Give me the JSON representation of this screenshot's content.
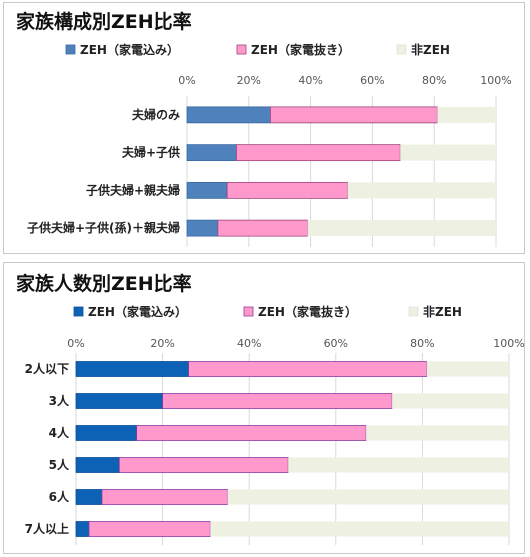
{
  "colors": {
    "zeh_home": "#4f81bd",
    "zeh_nohome": "#ff99cc",
    "non_zeh": "#eef1e2",
    "grid": "#d9d9d9",
    "chart2_zeh_home": "#0e62b5",
    "chart2_zeh_nohome_stroke": "#8e3aa3"
  },
  "chart_data": [
    {
      "type": "bar",
      "orientation": "horizontal",
      "stacked": true,
      "title": "家族構成別ZEH比率",
      "categories": [
        "夫婦のみ",
        "夫婦+子供",
        "子供夫婦+親夫婦",
        "子供夫婦+子供(孫)＋親夫婦"
      ],
      "series": [
        {
          "name": "ZEH（家電込み）",
          "values": [
            27,
            16,
            13,
            10
          ]
        },
        {
          "name": "ZEH（家電抜き）",
          "values": [
            54,
            53,
            39,
            29
          ]
        },
        {
          "name": "非ZEH",
          "values": [
            19,
            31,
            48,
            61
          ]
        }
      ],
      "xlim": [
        0,
        100
      ],
      "xticks": [
        "0%",
        "20%",
        "40%",
        "60%",
        "80%",
        "100%"
      ],
      "grid": true,
      "legend": "top"
    },
    {
      "type": "bar",
      "orientation": "horizontal",
      "stacked": true,
      "title": "家族人数別ZEH比率",
      "categories": [
        "2人以下",
        "3人",
        "4人",
        "5人",
        "6人",
        "7人以上"
      ],
      "series": [
        {
          "name": "ZEH（家電込み）",
          "values": [
            26,
            20,
            14,
            10,
            6,
            3
          ]
        },
        {
          "name": "ZEH（家電抜き）",
          "values": [
            55,
            53,
            53,
            39,
            29,
            28
          ]
        },
        {
          "name": "非ZEH",
          "values": [
            19,
            27,
            33,
            51,
            65,
            69
          ]
        }
      ],
      "xlim": [
        0,
        100
      ],
      "xticks": [
        "0%",
        "20%",
        "40%",
        "60%",
        "80%",
        "100%"
      ],
      "grid": true,
      "legend": "top"
    }
  ]
}
